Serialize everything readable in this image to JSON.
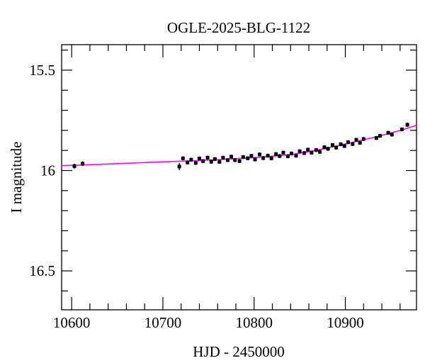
{
  "chart_data": {
    "type": "scatter",
    "title": "OGLE-2025-BLG-1122",
    "xlabel": "HJD - 2450000",
    "ylabel": "I magnitude",
    "xlim": [
      10589,
      10978
    ],
    "ylim": [
      15.373,
      16.694
    ],
    "y_axis_inverted_magnitude": true,
    "grid": false,
    "background_color": "#ffffff",
    "axis_color": "#000000",
    "marker_color": "#000000",
    "model_color": "#ff00ff",
    "x_minor_step": 20,
    "x_major_step": 100,
    "y_minor_step": 0.1,
    "y_major_step": 0.5,
    "x_ticks": [
      {
        "v": 10600,
        "label": "10600"
      },
      {
        "v": 10700,
        "label": "10700"
      },
      {
        "v": 10800,
        "label": "10800"
      },
      {
        "v": 10900,
        "label": "10900"
      }
    ],
    "y_ticks": [
      {
        "v": 15.5,
        "label": "15.5"
      },
      {
        "v": 16.0,
        "label": "16"
      },
      {
        "v": 16.5,
        "label": "16.5"
      }
    ],
    "model_curve": [
      [
        10589,
        15.976
      ],
      [
        10620,
        15.971
      ],
      [
        10660,
        15.964
      ],
      [
        10700,
        15.957
      ],
      [
        10740,
        15.95
      ],
      [
        10780,
        15.941
      ],
      [
        10810,
        15.932
      ],
      [
        10840,
        15.92
      ],
      [
        10860,
        15.906
      ],
      [
        10880,
        15.888
      ],
      [
        10900,
        15.868
      ],
      [
        10920,
        15.847
      ],
      [
        10940,
        15.825
      ],
      [
        10960,
        15.8
      ],
      [
        10978,
        15.775
      ]
    ],
    "points": [
      [
        10603,
        15.978,
        0.012
      ],
      [
        10612,
        15.966,
        0.012
      ],
      [
        10718,
        15.98,
        0.018
      ],
      [
        10722,
        15.939,
        0.01
      ],
      [
        10727,
        15.96,
        0.01
      ],
      [
        10731,
        15.946,
        0.01
      ],
      [
        10736,
        15.962,
        0.01
      ],
      [
        10740,
        15.94,
        0.01
      ],
      [
        10744,
        15.953,
        0.01
      ],
      [
        10749,
        15.936,
        0.01
      ],
      [
        10753,
        15.956,
        0.01
      ],
      [
        10757,
        15.943,
        0.01
      ],
      [
        10762,
        15.957,
        0.01
      ],
      [
        10766,
        15.936,
        0.01
      ],
      [
        10771,
        15.948,
        0.01
      ],
      [
        10775,
        15.931,
        0.01
      ],
      [
        10779,
        15.948,
        0.01
      ],
      [
        10784,
        15.953,
        0.01
      ],
      [
        10788,
        15.933,
        0.01
      ],
      [
        10793,
        15.939,
        0.01
      ],
      [
        10797,
        15.927,
        0.01
      ],
      [
        10801,
        15.945,
        0.01
      ],
      [
        10806,
        15.92,
        0.01
      ],
      [
        10810,
        15.938,
        0.01
      ],
      [
        10815,
        15.926,
        0.01
      ],
      [
        10819,
        15.939,
        0.01
      ],
      [
        10824,
        15.918,
        0.01
      ],
      [
        10828,
        15.928,
        0.01
      ],
      [
        10832,
        15.911,
        0.01
      ],
      [
        10837,
        15.929,
        0.01
      ],
      [
        10841,
        15.915,
        0.01
      ],
      [
        10846,
        15.926,
        0.01
      ],
      [
        10850,
        15.904,
        0.01
      ],
      [
        10855,
        15.913,
        0.01
      ],
      [
        10859,
        15.896,
        0.01
      ],
      [
        10863,
        15.911,
        0.01
      ],
      [
        10868,
        15.898,
        0.01
      ],
      [
        10872,
        15.907,
        0.01
      ],
      [
        10877,
        15.884,
        0.01
      ],
      [
        10881,
        15.892,
        0.01
      ],
      [
        10886,
        15.873,
        0.01
      ],
      [
        10890,
        15.886,
        0.01
      ],
      [
        10895,
        15.869,
        0.01
      ],
      [
        10899,
        15.878,
        0.01
      ],
      [
        10903,
        15.859,
        0.01
      ],
      [
        10908,
        15.868,
        0.01
      ],
      [
        10912,
        15.847,
        0.01
      ],
      [
        10916,
        15.862,
        0.01
      ],
      [
        10920,
        15.843,
        0.01
      ],
      [
        10934,
        15.838,
        0.01
      ],
      [
        10938,
        15.827,
        0.01
      ],
      [
        10947,
        15.812,
        0.01
      ],
      [
        10951,
        15.821,
        0.01
      ],
      [
        10962,
        15.795,
        0.01
      ],
      [
        10968,
        15.772,
        0.011
      ]
    ]
  }
}
